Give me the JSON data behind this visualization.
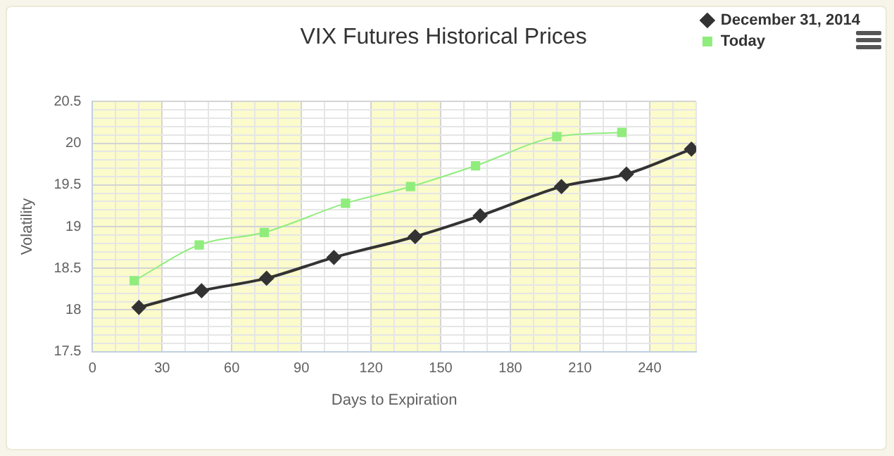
{
  "chart_data": {
    "type": "line",
    "title": "VIX Futures Historical Prices",
    "xlabel": "Days to Expiration",
    "ylabel": "Volatility",
    "series": [
      {
        "name": "December 31, 2014",
        "color": "#333333",
        "marker": "diamond",
        "x": [
          20,
          47,
          75,
          104,
          139,
          167,
          202,
          230,
          258
        ],
        "values": [
          18.03,
          18.23,
          18.38,
          18.63,
          18.88,
          19.13,
          19.48,
          19.63,
          19.93
        ]
      },
      {
        "name": "Today",
        "color": "#90ed7d",
        "marker": "square",
        "x": [
          18,
          46,
          74,
          109,
          137,
          165,
          200,
          228
        ],
        "values": [
          18.35,
          18.78,
          18.93,
          19.28,
          19.48,
          19.73,
          20.08,
          20.13
        ]
      }
    ],
    "xlim": [
      0,
      260
    ],
    "xticks": [
      0,
      {
        "value": 10,
        "label": null
      },
      {
        "value": 20,
        "label": null
      },
      30,
      {
        "value": 40,
        "label": null
      },
      {
        "value": 50,
        "label": null
      },
      60,
      {
        "value": 70,
        "label": null
      },
      {
        "value": 80,
        "label": null
      },
      90,
      {
        "value": 100,
        "label": null
      },
      {
        "value": 110,
        "label": null
      },
      120,
      {
        "value": 130,
        "label": null
      },
      {
        "value": 140,
        "label": null
      },
      150,
      {
        "value": 160,
        "label": null
      },
      {
        "value": 170,
        "label": null
      },
      180,
      {
        "value": 190,
        "label": null
      },
      {
        "value": 200,
        "label": null
      },
      210,
      {
        "value": 220,
        "label": null
      },
      {
        "value": 230,
        "label": null
      },
      240,
      {
        "value": 250,
        "label": null
      },
      {
        "value": 260,
        "label": null
      }
    ],
    "ylim": [
      17.5,
      20.5
    ],
    "yticks": [
      17.5,
      {
        "value": 17.6,
        "label": null
      },
      {
        "value": 17.7,
        "label": null
      },
      {
        "value": 17.8,
        "label": null
      },
      {
        "value": 17.9,
        "label": null
      },
      18,
      {
        "value": 18.1,
        "label": null
      },
      {
        "value": 18.2,
        "label": null
      },
      {
        "value": 18.3,
        "label": null
      },
      {
        "value": 18.4,
        "label": null
      },
      18.5,
      {
        "value": 18.6,
        "label": null
      },
      {
        "value": 18.7,
        "label": null
      },
      {
        "value": 18.8,
        "label": null
      },
      {
        "value": 18.9,
        "label": null
      },
      19,
      {
        "value": 19.1,
        "label": null
      },
      {
        "value": 19.2,
        "label": null
      },
      {
        "value": 19.3,
        "label": null
      },
      {
        "value": 19.4,
        "label": null
      },
      19.5,
      {
        "value": 19.6,
        "label": null
      },
      {
        "value": 19.7,
        "label": null
      },
      {
        "value": 19.8,
        "label": null
      },
      {
        "value": 19.9,
        "label": null
      },
      20,
      {
        "value": 20.1,
        "label": null
      },
      {
        "value": 20.2,
        "label": null
      },
      {
        "value": 20.3,
        "label": null
      },
      {
        "value": 20.4,
        "label": null
      },
      20.5
    ],
    "bands": [
      {
        "axis": "x",
        "from": 0,
        "to": 30,
        "color": "#fbfbcc"
      },
      {
        "axis": "x",
        "from": 60,
        "to": 90,
        "color": "#fbfbcc"
      },
      {
        "axis": "x",
        "from": 120,
        "to": 150,
        "color": "#fbfbcc"
      },
      {
        "axis": "x",
        "from": 180,
        "to": 210,
        "color": "#fbfbcc"
      },
      {
        "axis": "x",
        "from": 240,
        "to": 260,
        "color": "#fbfbcc"
      }
    ],
    "grid": true,
    "legend": "top right",
    "line_style": "solid"
  }
}
